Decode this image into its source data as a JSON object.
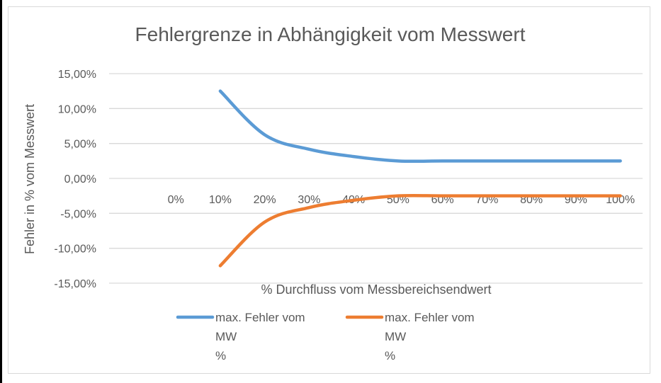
{
  "chart_data": {
    "type": "line",
    "title": "Fehlergrenze in Abhängigkeit vom Messwert",
    "xlabel": "% Durchfluss vom Messbereichsendwert",
    "ylabel": "Fehler in % vom Messwert",
    "categories": [
      "",
      "0%",
      "10%",
      "20%",
      "30%",
      "40%",
      "50%",
      "60%",
      "70%",
      "80%",
      "90%",
      "100%"
    ],
    "y_ticks": [
      "15,00%",
      "10,00%",
      "5,00%",
      "0,00%",
      "-5,00%",
      "-10,00%",
      "-15,00%"
    ],
    "ylim": [
      -15,
      15
    ],
    "grid": true,
    "legend_position": "bottom",
    "series": [
      {
        "name": "max. Fehler vom MW %",
        "legend_lines": [
          "max. Fehler vom",
          "MW",
          "%"
        ],
        "color": "#5b9bd5",
        "values": [
          null,
          null,
          12.5,
          6.25,
          4.17,
          3.13,
          2.5,
          2.5,
          2.5,
          2.5,
          2.5,
          2.5
        ]
      },
      {
        "name": "max. Fehler vom MW %",
        "legend_lines": [
          "max. Fehler vom",
          "MW",
          "%"
        ],
        "color": "#ed7d31",
        "values": [
          null,
          null,
          -12.5,
          -6.25,
          -4.17,
          -3.13,
          -2.5,
          -2.5,
          -2.5,
          -2.5,
          -2.5,
          -2.5
        ]
      }
    ]
  }
}
